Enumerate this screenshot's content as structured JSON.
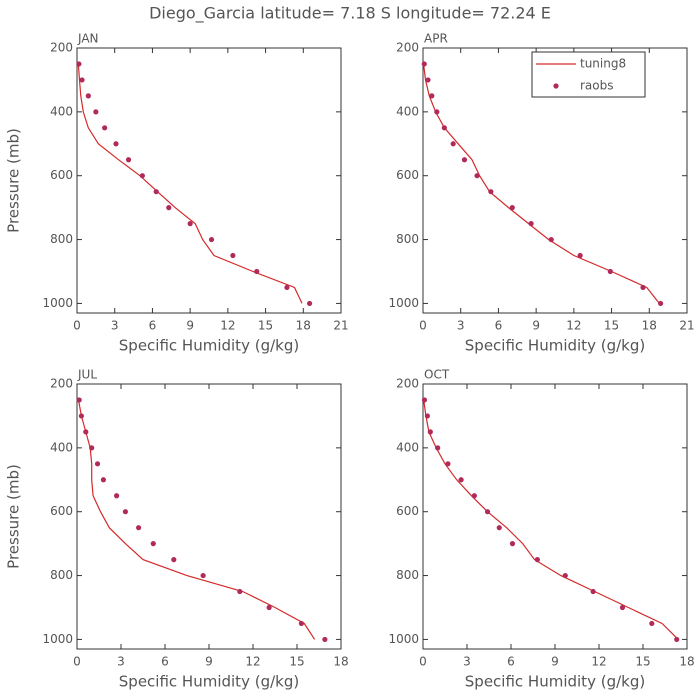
{
  "title": "Diego_Garcia  latitude= 7.18 S longitude= 72.24 E",
  "chart_data": [
    {
      "type": "line",
      "label": "JAN",
      "xlabel": "Specific Humidity (g/kg)",
      "ylabel": "Pressure (mb)",
      "xlim": [
        0,
        21
      ],
      "xticks": [
        0,
        3,
        6,
        9,
        12,
        15,
        18,
        21
      ],
      "ylim": [
        1030,
        200
      ],
      "yticks": [
        200,
        400,
        600,
        800,
        1000
      ],
      "series": [
        {
          "name": "tuning8",
          "color": "#d42a2a",
          "style": "line",
          "x": [
            0.1,
            0.2,
            0.3,
            0.5,
            0.9,
            1.7,
            3.3,
            5.0,
            6.4,
            7.8,
            9.4,
            10.0,
            10.9,
            14.0,
            17.3,
            17.9
          ],
          "y": [
            250,
            300,
            350,
            400,
            450,
            500,
            550,
            600,
            650,
            700,
            750,
            800,
            850,
            900,
            950,
            1000
          ]
        },
        {
          "name": "raobs",
          "color": "#b02a5a",
          "style": "markers",
          "x": [
            0.15,
            0.4,
            0.9,
            1.5,
            2.2,
            3.1,
            4.1,
            5.2,
            6.3,
            7.3,
            9.0,
            10.7,
            12.4,
            14.3,
            16.7,
            18.5
          ],
          "y": [
            250,
            300,
            350,
            400,
            450,
            500,
            550,
            600,
            650,
            700,
            750,
            800,
            850,
            900,
            950,
            1000
          ]
        }
      ]
    },
    {
      "type": "line",
      "label": "APR",
      "xlabel": "Specific Humidity (g/kg)",
      "legend": "upper right",
      "xlim": [
        0,
        21
      ],
      "xticks": [
        0,
        3,
        6,
        9,
        12,
        15,
        18,
        21
      ],
      "ylim": [
        1030,
        200
      ],
      "yticks": [
        200,
        400,
        600,
        800,
        1000
      ],
      "series": [
        {
          "name": "tuning8",
          "color": "#d42a2a",
          "style": "line",
          "x": [
            0.05,
            0.2,
            0.5,
            1.0,
            1.7,
            2.8,
            3.9,
            4.5,
            5.3,
            6.8,
            8.4,
            10.0,
            12.0,
            15.0,
            17.8,
            18.8
          ],
          "y": [
            250,
            300,
            350,
            400,
            450,
            500,
            550,
            600,
            650,
            700,
            750,
            800,
            850,
            900,
            950,
            1000
          ]
        },
        {
          "name": "raobs",
          "color": "#b02a5a",
          "style": "markers",
          "x": [
            0.1,
            0.4,
            0.7,
            1.1,
            1.7,
            2.4,
            3.3,
            4.3,
            5.4,
            7.1,
            8.6,
            10.2,
            12.5,
            14.9,
            17.5,
            18.9
          ],
          "y": [
            250,
            300,
            350,
            400,
            450,
            500,
            550,
            600,
            650,
            700,
            750,
            800,
            850,
            900,
            950,
            1000
          ]
        }
      ]
    },
    {
      "type": "line",
      "label": "JUL",
      "xlabel": "Specific Humidity (g/kg)",
      "ylabel": "Pressure (mb)",
      "xlim": [
        0,
        18
      ],
      "xticks": [
        0,
        3,
        6,
        9,
        12,
        15,
        18
      ],
      "ylim": [
        1030,
        200
      ],
      "yticks": [
        200,
        400,
        600,
        800,
        1000
      ],
      "series": [
        {
          "name": "tuning8",
          "color": "#d42a2a",
          "style": "line",
          "x": [
            0.1,
            0.3,
            0.6,
            0.9,
            1.0,
            1.0,
            1.1,
            1.6,
            2.2,
            3.3,
            4.5,
            7.5,
            11.3,
            13.5,
            15.5,
            16.2
          ],
          "y": [
            250,
            300,
            350,
            400,
            450,
            500,
            550,
            600,
            650,
            700,
            750,
            800,
            850,
            900,
            950,
            1000
          ]
        },
        {
          "name": "raobs",
          "color": "#b02a5a",
          "style": "markers",
          "x": [
            0.15,
            0.3,
            0.6,
            1.0,
            1.4,
            1.8,
            2.7,
            3.3,
            4.2,
            5.2,
            6.6,
            8.6,
            11.1,
            13.1,
            15.3,
            16.9
          ],
          "y": [
            250,
            300,
            350,
            400,
            450,
            500,
            550,
            600,
            650,
            700,
            750,
            800,
            850,
            900,
            950,
            1000
          ]
        }
      ]
    },
    {
      "type": "line",
      "label": "OCT",
      "xlabel": "Specific Humidity (g/kg)",
      "xlim": [
        0,
        18
      ],
      "xticks": [
        0,
        3,
        6,
        9,
        12,
        15,
        18
      ],
      "ylim": [
        1030,
        200
      ],
      "yticks": [
        200,
        400,
        600,
        800,
        1000
      ],
      "series": [
        {
          "name": "tuning8",
          "color": "#d42a2a",
          "style": "line",
          "x": [
            0.05,
            0.2,
            0.4,
            0.9,
            1.5,
            2.3,
            3.3,
            4.4,
            5.7,
            6.8,
            7.6,
            9.4,
            11.7,
            14.0,
            16.3,
            17.4
          ],
          "y": [
            250,
            300,
            350,
            400,
            450,
            500,
            550,
            600,
            650,
            700,
            750,
            800,
            850,
            900,
            950,
            1000
          ]
        },
        {
          "name": "raobs",
          "color": "#b02a5a",
          "style": "markers",
          "x": [
            0.1,
            0.3,
            0.5,
            1.0,
            1.7,
            2.6,
            3.5,
            4.4,
            5.2,
            6.1,
            7.8,
            9.7,
            11.6,
            13.6,
            15.6,
            17.3
          ],
          "y": [
            250,
            300,
            350,
            400,
            450,
            500,
            550,
            600,
            650,
            700,
            750,
            800,
            850,
            900,
            950,
            1000
          ]
        }
      ]
    }
  ]
}
